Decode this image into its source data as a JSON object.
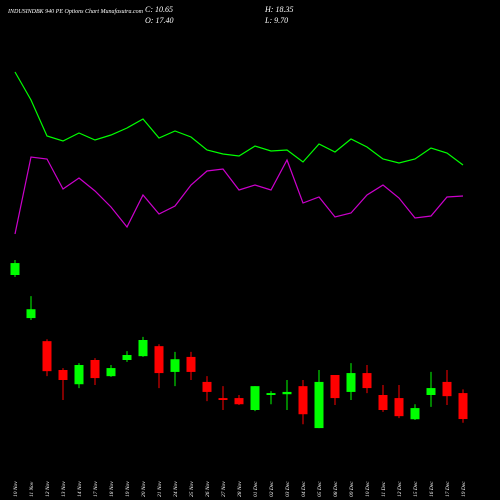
{
  "chart_data": {
    "type": "candlestick",
    "title": "INDUSINDBK 940 PE Options Chart Munafasutra.com",
    "legend_text": [
      "C: 10.65",
      "H: 18.35",
      "O: 17.40",
      "L: 9.70"
    ],
    "categories": [
      "10 Nov",
      "11 Nov",
      "12 Nov",
      "13 Nov",
      "14 Nov",
      "17 Nov",
      "18 Nov",
      "19 Nov",
      "20 Nov",
      "21 Nov",
      "24 Nov",
      "25 Nov",
      "26 Nov",
      "27 Nov",
      "28 Nov",
      "01 Dec",
      "02 Dec",
      "03 Dec",
      "04 Dec",
      "05 Dec",
      "08 Dec",
      "09 Dec",
      "10 Dec",
      "11 Dec",
      "12 Dec",
      "15 Dec",
      "16 Dec",
      "17 Dec",
      "19 Dec"
    ],
    "open": [
      48.1,
      36.9,
      30.9,
      23.4,
      19.7,
      26.0,
      21.8,
      26.0,
      27.0,
      29.6,
      22.9,
      26.8,
      20.3,
      16.1,
      16.1,
      13.0,
      16.9,
      17.1,
      19.2,
      8.3,
      22.1,
      17.7,
      22.6,
      16.9,
      16.1,
      10.6,
      16.9,
      20.3,
      17.4
    ],
    "high": [
      52.0,
      42.6,
      31.4,
      23.9,
      25.2,
      26.5,
      24.7,
      28.3,
      32.0,
      30.1,
      28.1,
      28.1,
      21.8,
      19.2,
      16.9,
      19.2,
      17.9,
      20.8,
      20.8,
      23.4,
      22.1,
      25.2,
      24.7,
      19.5,
      19.5,
      14.5,
      22.9,
      23.4,
      18.35
    ],
    "low": [
      47.6,
      36.4,
      21.8,
      15.6,
      18.7,
      19.5,
      21.6,
      25.5,
      26.8,
      18.7,
      19.2,
      20.8,
      15.3,
      13.0,
      14.3,
      12.7,
      14.5,
      13.0,
      9.3,
      8.3,
      14.3,
      15.6,
      17.4,
      12.5,
      10.9,
      10.4,
      13.8,
      14.3,
      9.7
    ],
    "close": [
      51.2,
      39.2,
      23.1,
      20.8,
      24.7,
      21.3,
      23.9,
      27.3,
      31.2,
      22.6,
      26.2,
      22.9,
      17.7,
      15.6,
      14.5,
      19.2,
      17.4,
      17.7,
      11.9,
      20.3,
      16.1,
      22.6,
      18.7,
      13.0,
      11.4,
      13.5,
      18.7,
      16.6,
      10.65
    ],
    "ylim": [
      7.8,
      54.6
    ],
    "up_color": "#00ff00",
    "down_color": "#ff0000",
    "lines": {
      "ylim": [
        0,
        100
      ],
      "series": [
        {
          "color": "#00ff00",
          "values": [
            89,
            75,
            57,
            54.5,
            58.5,
            55,
            57.5,
            61,
            65.5,
            56,
            59.5,
            56.5,
            50,
            48,
            47,
            52,
            49.5,
            50,
            44,
            53,
            49,
            55.5,
            51.5,
            45.5,
            43.5,
            45.5,
            51,
            48.5,
            42.5
          ]
        },
        {
          "color": "#cc00cc",
          "values": [
            8,
            46.5,
            45.5,
            30.5,
            36,
            29.5,
            21.5,
            11.5,
            27.5,
            18,
            22,
            32.5,
            39.5,
            40.5,
            30,
            32.5,
            30,
            45,
            23.5,
            26.5,
            16.5,
            18.5,
            27.5,
            32.5,
            26,
            16,
            17,
            26.5,
            27
          ]
        }
      ]
    }
  }
}
